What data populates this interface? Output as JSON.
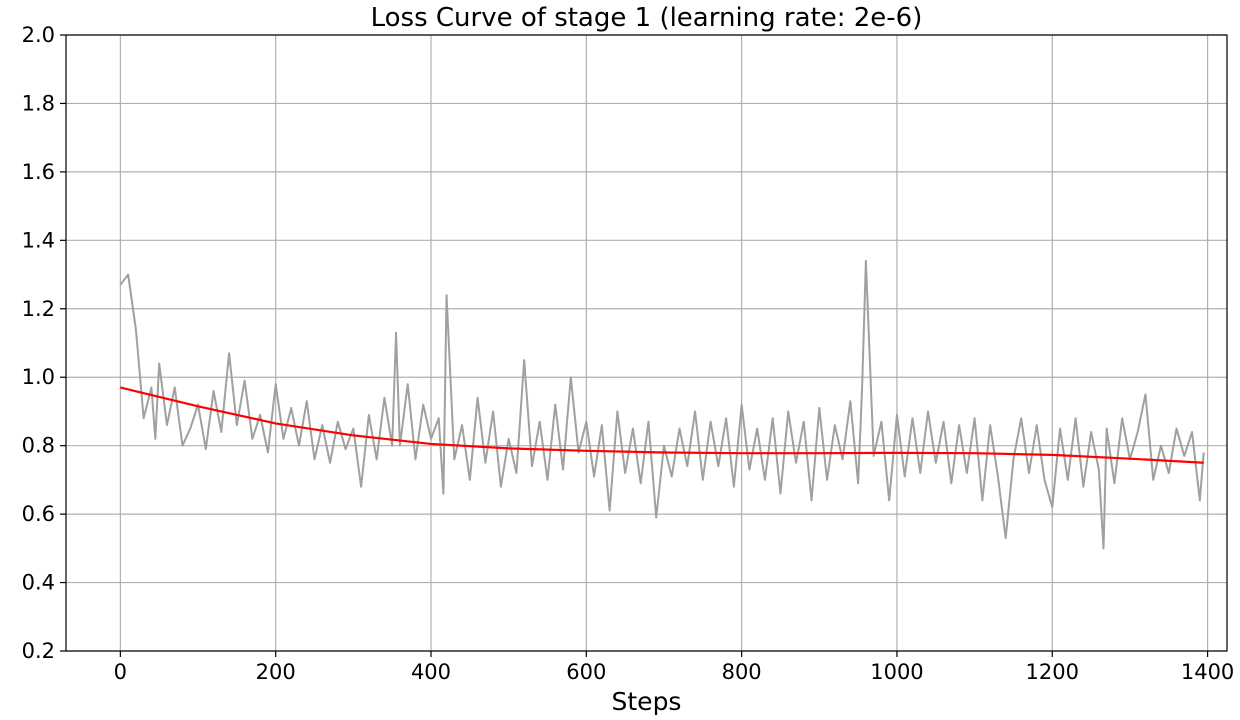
{
  "chart_data": {
    "type": "line",
    "title": "Loss Curve of stage 1 (learning rate: 2e-6)",
    "xlabel": "Steps",
    "ylabel": "",
    "xlim": [
      -70,
      1425
    ],
    "ylim": [
      0.2,
      2.0
    ],
    "xticks": [
      0,
      200,
      400,
      600,
      800,
      1000,
      1200,
      1400
    ],
    "xtick_labels": [
      "0",
      "200",
      "400",
      "600",
      "800",
      "1000",
      "1200",
      "1400"
    ],
    "yticks": [
      0.2,
      0.4,
      0.6,
      0.8,
      1.0,
      1.2,
      1.4,
      1.6,
      1.8,
      2.0
    ],
    "ytick_labels": [
      "0.2",
      "0.4",
      "0.6",
      "0.8",
      "1.0",
      "1.2",
      "1.4",
      "1.6",
      "1.8",
      "2.0"
    ],
    "grid": true,
    "legend": "none",
    "series": [
      {
        "role": "raw-loss",
        "color": "#a0a0a0",
        "x": [
          0,
          10,
          20,
          30,
          40,
          45,
          50,
          60,
          70,
          80,
          90,
          100,
          110,
          120,
          130,
          140,
          150,
          160,
          170,
          180,
          190,
          200,
          210,
          220,
          230,
          240,
          250,
          260,
          270,
          280,
          290,
          300,
          310,
          320,
          330,
          340,
          350,
          355,
          360,
          370,
          380,
          390,
          400,
          410,
          416,
          420,
          430,
          440,
          450,
          460,
          470,
          480,
          490,
          500,
          510,
          520,
          530,
          540,
          550,
          560,
          570,
          580,
          590,
          600,
          610,
          620,
          630,
          640,
          650,
          660,
          670,
          680,
          690,
          700,
          710,
          720,
          730,
          740,
          750,
          760,
          770,
          780,
          790,
          800,
          810,
          820,
          830,
          840,
          850,
          860,
          870,
          880,
          890,
          900,
          910,
          920,
          930,
          940,
          950,
          955,
          960,
          970,
          980,
          990,
          1000,
          1010,
          1020,
          1030,
          1040,
          1050,
          1060,
          1070,
          1080,
          1090,
          1100,
          1110,
          1120,
          1130,
          1140,
          1150,
          1160,
          1170,
          1180,
          1190,
          1200,
          1210,
          1220,
          1230,
          1240,
          1250,
          1260,
          1266,
          1270,
          1280,
          1290,
          1300,
          1310,
          1320,
          1330,
          1340,
          1350,
          1360,
          1370,
          1380,
          1390,
          1395
        ],
        "y": [
          1.27,
          1.3,
          1.14,
          0.88,
          0.97,
          0.82,
          1.04,
          0.86,
          0.97,
          0.8,
          0.85,
          0.92,
          0.79,
          0.96,
          0.84,
          1.07,
          0.86,
          0.99,
          0.82,
          0.89,
          0.78,
          0.98,
          0.82,
          0.91,
          0.8,
          0.93,
          0.76,
          0.86,
          0.75,
          0.87,
          0.79,
          0.85,
          0.68,
          0.89,
          0.76,
          0.94,
          0.8,
          1.13,
          0.8,
          0.98,
          0.76,
          0.92,
          0.82,
          0.88,
          0.66,
          1.24,
          0.76,
          0.86,
          0.7,
          0.94,
          0.75,
          0.9,
          0.68,
          0.82,
          0.72,
          1.05,
          0.74,
          0.87,
          0.7,
          0.92,
          0.73,
          1.0,
          0.78,
          0.87,
          0.71,
          0.86,
          0.61,
          0.9,
          0.72,
          0.85,
          0.69,
          0.87,
          0.59,
          0.8,
          0.71,
          0.85,
          0.74,
          0.9,
          0.7,
          0.87,
          0.74,
          0.88,
          0.68,
          0.92,
          0.73,
          0.85,
          0.7,
          0.88,
          0.66,
          0.9,
          0.75,
          0.87,
          0.64,
          0.91,
          0.7,
          0.86,
          0.76,
          0.93,
          0.69,
          0.96,
          1.34,
          0.77,
          0.87,
          0.64,
          0.89,
          0.71,
          0.88,
          0.72,
          0.9,
          0.75,
          0.87,
          0.69,
          0.86,
          0.72,
          0.88,
          0.64,
          0.86,
          0.71,
          0.53,
          0.76,
          0.88,
          0.72,
          0.86,
          0.7,
          0.62,
          0.85,
          0.7,
          0.88,
          0.68,
          0.84,
          0.73,
          0.5,
          0.85,
          0.69,
          0.88,
          0.76,
          0.84,
          0.95,
          0.7,
          0.8,
          0.72,
          0.85,
          0.77,
          0.84,
          0.64,
          0.78
        ]
      },
      {
        "role": "smoothed-loss",
        "color": "#ff0000",
        "x": [
          0,
          100,
          200,
          300,
          400,
          500,
          600,
          700,
          800,
          900,
          1000,
          1100,
          1200,
          1300,
          1395
        ],
        "y": [
          0.97,
          0.915,
          0.865,
          0.83,
          0.805,
          0.792,
          0.785,
          0.78,
          0.778,
          0.778,
          0.779,
          0.778,
          0.773,
          0.762,
          0.75
        ]
      }
    ]
  }
}
